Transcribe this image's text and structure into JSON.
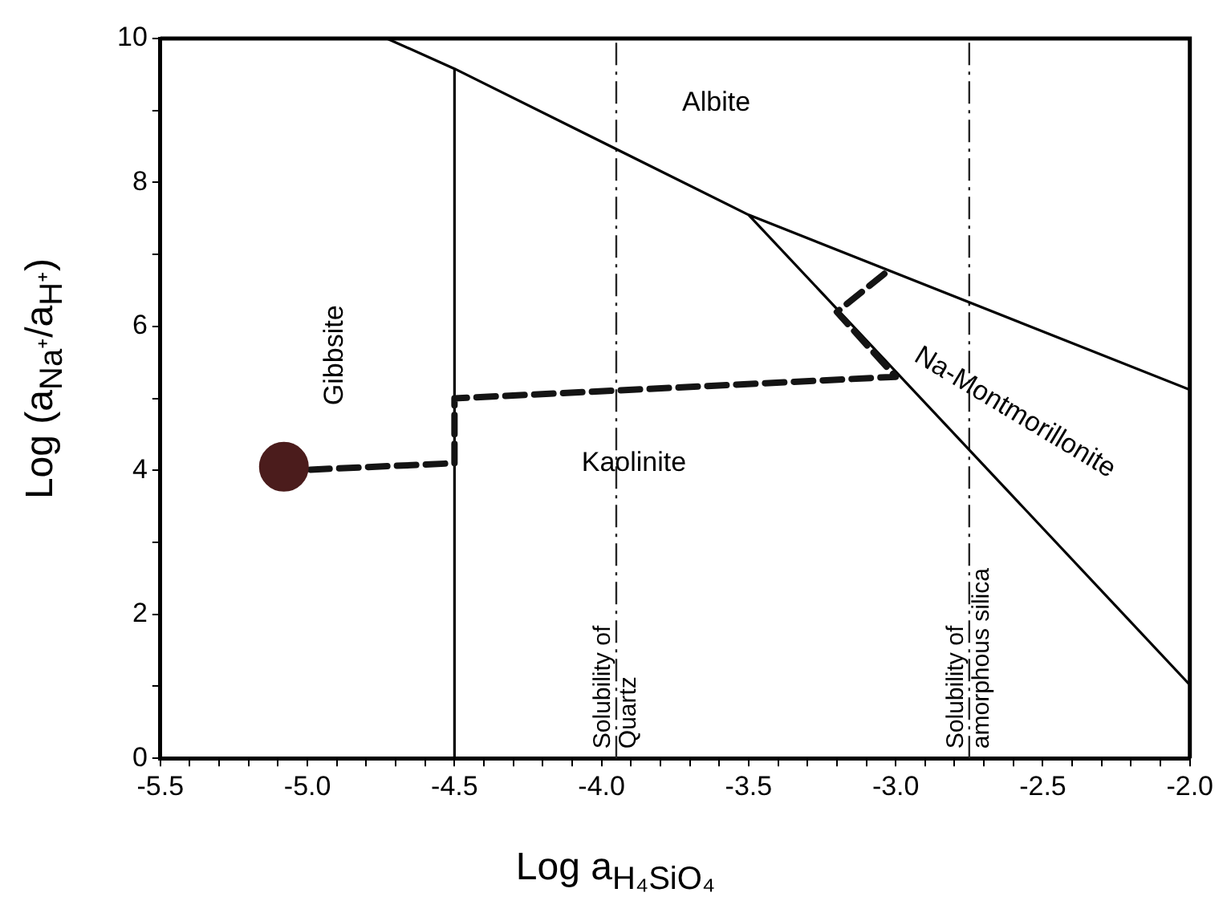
{
  "chart_data": {
    "type": "line",
    "xlabel": "Log a$_{H₄SiO₄}$",
    "ylabel": "Log (a$_{Na⁺}$/a$_{H⁺}$)",
    "xlim": [
      -5.5,
      -2.0
    ],
    "ylim": [
      0,
      10
    ],
    "xticks": [
      {
        "value": -5.5,
        "label": "-5.5"
      },
      {
        "value": -5.4,
        "label": null
      },
      {
        "value": -5.3,
        "label": null
      },
      {
        "value": -5.2,
        "label": null
      },
      {
        "value": -5.1,
        "label": null
      },
      {
        "value": -5.0,
        "label": "-5.0"
      },
      {
        "value": -4.9,
        "label": null
      },
      {
        "value": -4.8,
        "label": null
      },
      {
        "value": -4.7,
        "label": null
      },
      {
        "value": -4.6,
        "label": null
      },
      {
        "value": -4.5,
        "label": "-4.5"
      },
      {
        "value": -4.4,
        "label": null
      },
      {
        "value": -4.3,
        "label": null
      },
      {
        "value": -4.2,
        "label": null
      },
      {
        "value": -4.1,
        "label": null
      },
      {
        "value": -4.0,
        "label": "-4.0"
      },
      {
        "value": -3.9,
        "label": null
      },
      {
        "value": -3.8,
        "label": null
      },
      {
        "value": -3.7,
        "label": null
      },
      {
        "value": -3.6,
        "label": null
      },
      {
        "value": -3.5,
        "label": "-3.5"
      },
      {
        "value": -3.4,
        "label": null
      },
      {
        "value": -3.3,
        "label": null
      },
      {
        "value": -3.2,
        "label": null
      },
      {
        "value": -3.1,
        "label": null
      },
      {
        "value": -3.0,
        "label": "-3.0"
      },
      {
        "value": -2.9,
        "label": null
      },
      {
        "value": -2.8,
        "label": null
      },
      {
        "value": -2.7,
        "label": null
      },
      {
        "value": -2.6,
        "label": null
      },
      {
        "value": -2.5,
        "label": "-2.5"
      },
      {
        "value": -2.4,
        "label": null
      },
      {
        "value": -2.3,
        "label": null
      },
      {
        "value": -2.2,
        "label": null
      },
      {
        "value": -2.1,
        "label": null
      },
      {
        "value": -2.0,
        "label": "-2.0"
      }
    ],
    "yticks": [
      0,
      {
        "value": 1,
        "label": null
      },
      2,
      {
        "value": 3,
        "label": null
      },
      4,
      {
        "value": 5,
        "label": null
      },
      6,
      {
        "value": 7,
        "label": null
      },
      8,
      {
        "value": 9,
        "label": null
      },
      10
    ],
    "grid": false,
    "legend": false,
    "line_style": "solid",
    "series": [
      {
        "x": [
          -4.5,
          -4.5,
          -4.73,
          null,
          -4.5,
          -3.5,
          -2.0,
          null,
          -3.5,
          -2.0
        ],
        "values": [
          0,
          9.58,
          10,
          null,
          9.58,
          7.55,
          5.12,
          null,
          7.55,
          1.02
        ],
        "color": "#000000"
      },
      {
        "x": [
          -4.99,
          -4.5,
          -4.5,
          -3.0,
          -3.2,
          -3.03
        ],
        "values": [
          4.01,
          4.1,
          5.0,
          5.3,
          6.2,
          6.76
        ],
        "color": "#141414",
        "line_style": "dashed"
      },
      {
        "type": "scatter",
        "x": [
          -5.08
        ],
        "values": [
          4.05
        ],
        "color": "#4b1c1c"
      }
    ],
    "ref_lines": [
      {
        "axis": "x",
        "value": -3.95,
        "label": "Solubility of Quartz",
        "color": "#262626",
        "line_style": "dashdot"
      },
      {
        "axis": "x",
        "value": -2.75,
        "label": "Solubility of amorphous silica",
        "color": "#262626",
        "line_style": "dashdot"
      }
    ],
    "annotations": [
      "Albite",
      "Gibbsite",
      "Kaolinite",
      "Na-Montmorillonite"
    ]
  }
}
